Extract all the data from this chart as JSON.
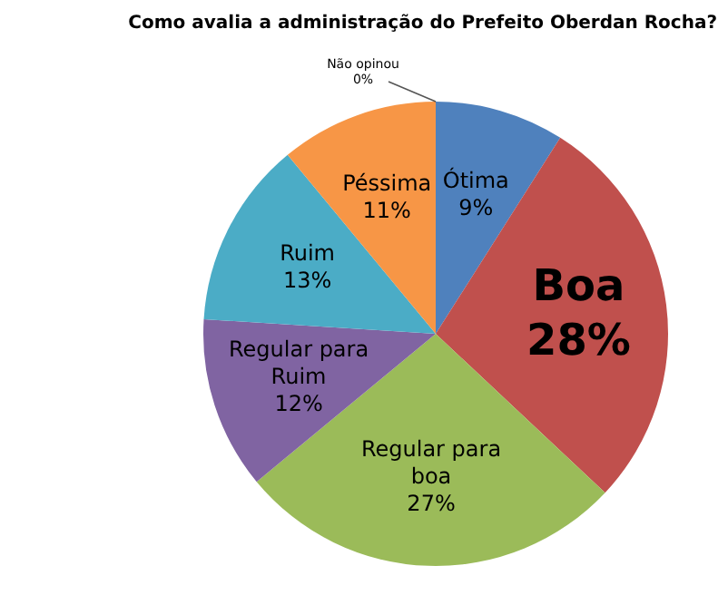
{
  "chart_data": {
    "type": "pie",
    "title": "Como avalia a administração do Prefeito Oberdan Rocha?",
    "categories": [
      "Ótima",
      "Boa",
      "Regular para boa",
      "Regular para Ruim",
      "Ruim",
      "Péssima",
      "Não opinou"
    ],
    "values": [
      9,
      28,
      27,
      12,
      13,
      11,
      0
    ],
    "value_labels": [
      "9%",
      "28%",
      "27%",
      "12%",
      "13%",
      "11%",
      "0%"
    ],
    "colors": [
      "#4f81bd",
      "#c0504d",
      "#9bbb59",
      "#8064a2",
      "#4bacc6",
      "#f79646",
      "#a5b4d4"
    ],
    "legend": false
  }
}
